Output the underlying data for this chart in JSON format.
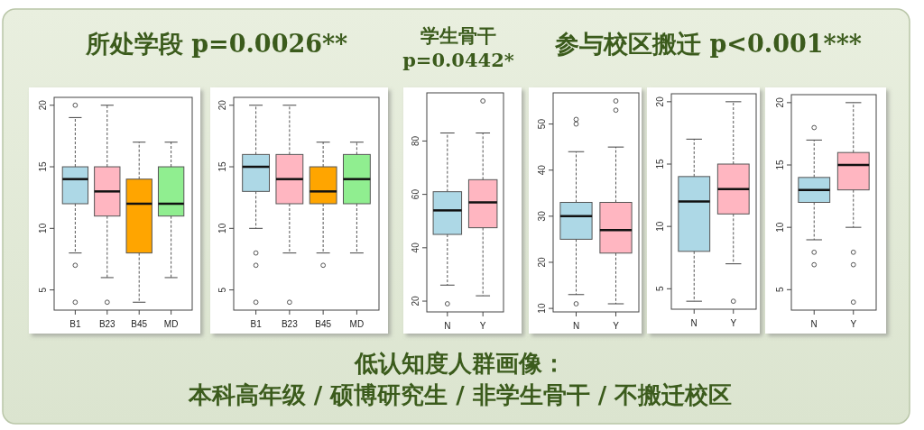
{
  "chart_data": [
    {
      "type": "box",
      "title": "所处学段 p=0.0026**",
      "categories": [
        "B1",
        "B23",
        "B45",
        "MD"
      ],
      "colors": [
        "#add8e6",
        "#ffb6c1",
        "#ffa500",
        "#90ee90"
      ],
      "ylim": [
        3.36,
        20.64
      ],
      "yticks": [
        5,
        10,
        15,
        20
      ],
      "boxes": [
        {
          "low": 8,
          "q1": 12,
          "median": 14,
          "q3": 15,
          "high": 19,
          "outliers": [
            20,
            7,
            4
          ]
        },
        {
          "low": 6,
          "q1": 11,
          "median": 13,
          "q3": 15,
          "high": 20,
          "outliers": [
            4
          ]
        },
        {
          "low": 4,
          "q1": 8,
          "median": 12,
          "q3": 14,
          "high": 17
        },
        {
          "low": 6,
          "q1": 11,
          "median": 12,
          "q3": 15,
          "high": 17
        }
      ]
    },
    {
      "type": "box",
      "categories": [
        "B1",
        "B23",
        "B45",
        "MD"
      ],
      "colors": [
        "#add8e6",
        "#ffb6c1",
        "#ffa500",
        "#90ee90"
      ],
      "ylim": [
        3.36,
        20.64
      ],
      "yticks": [
        5,
        10,
        15,
        20
      ],
      "boxes": [
        {
          "low": 10,
          "q1": 13,
          "median": 15,
          "q3": 16,
          "high": 20,
          "outliers": [
            8,
            7,
            4
          ]
        },
        {
          "low": 8,
          "q1": 12,
          "median": 14,
          "q3": 16,
          "high": 20,
          "outliers": [
            4
          ]
        },
        {
          "low": 8,
          "q1": 12,
          "median": 13,
          "q3": 15,
          "high": 17,
          "outliers": [
            7
          ]
        },
        {
          "low": 8,
          "q1": 12,
          "median": 14,
          "q3": 16,
          "high": 17
        }
      ]
    },
    {
      "type": "box",
      "title": "学生骨干 p=0.0442*",
      "categories": [
        "N",
        "Y"
      ],
      "colors": [
        "#add8e6",
        "#ffb6c1"
      ],
      "ylim": [
        15.96,
        98.04
      ],
      "yticks": [
        20,
        40,
        60,
        80
      ],
      "boxes": [
        {
          "low": 26,
          "q1": 45,
          "median": 54,
          "q3": 61,
          "high": 83,
          "outliers": [
            19
          ]
        },
        {
          "low": 22,
          "q1": 47.5,
          "median": 57,
          "q3": 65.5,
          "high": 83,
          "outliers": [
            95
          ]
        }
      ]
    },
    {
      "type": "box",
      "title": "参与校区搬迁 p<0.001***",
      "categories": [
        "N",
        "Y"
      ],
      "colors": [
        "#add8e6",
        "#ffb6c1"
      ],
      "ylim": [
        9.24,
        56.76
      ],
      "yticks": [
        10,
        20,
        30,
        40,
        50
      ],
      "boxes": [
        {
          "low": 13,
          "q1": 25,
          "median": 30,
          "q3": 33,
          "high": 44,
          "outliers": [
            50,
            51,
            11
          ]
        },
        {
          "low": 11,
          "q1": 22,
          "median": 27,
          "q3": 33,
          "high": 45,
          "outliers": [
            53,
            55
          ]
        }
      ]
    },
    {
      "type": "box",
      "categories": [
        "N",
        "Y"
      ],
      "colors": [
        "#add8e6",
        "#ffb6c1"
      ],
      "ylim": [
        3.36,
        20.64
      ],
      "yticks": [
        5,
        10,
        15,
        20
      ],
      "boxes": [
        {
          "low": 4,
          "q1": 8,
          "median": 12,
          "q3": 14,
          "high": 17
        },
        {
          "low": 7,
          "q1": 11,
          "median": 13,
          "q3": 15,
          "high": 20,
          "outliers": [
            4
          ]
        }
      ]
    },
    {
      "type": "box",
      "categories": [
        "N",
        "Y"
      ],
      "colors": [
        "#add8e6",
        "#ffb6c1"
      ],
      "ylim": [
        3.36,
        20.64
      ],
      "yticks": [
        5,
        10,
        15,
        20
      ],
      "boxes": [
        {
          "low": 9,
          "q1": 12,
          "median": 13,
          "q3": 14,
          "high": 17,
          "outliers": [
            18,
            8,
            7
          ]
        },
        {
          "low": 10,
          "q1": 13,
          "median": 15,
          "q3": 16,
          "high": 20,
          "outliers": [
            8,
            7,
            4
          ]
        }
      ]
    },
    {
      "type": "other",
      "annotations": [
        "低认知度人群画像：",
        "本科高年级 / 硕博研究生 / 非学生骨干 / 不搬迁校区"
      ]
    }
  ]
}
